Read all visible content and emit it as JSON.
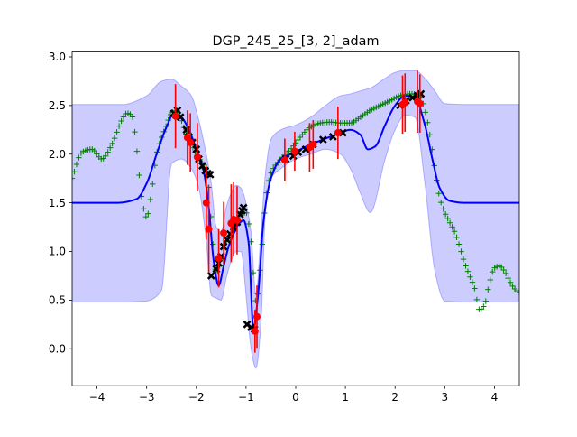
{
  "chart_data": {
    "type": "line",
    "title": "DGP_245_25_[3, 2]_adam",
    "xlabel": "",
    "ylabel": "",
    "xlim": [
      -4.5,
      4.5
    ],
    "ylim": [
      -0.38,
      3.05
    ],
    "x_ticks": [
      -4,
      -3,
      -2,
      -1,
      0,
      1,
      2,
      3,
      4
    ],
    "x_tick_labels": [
      "−4",
      "−3",
      "−2",
      "−1",
      "0",
      "1",
      "2",
      "3",
      "4"
    ],
    "y_ticks": [
      0.0,
      0.5,
      1.0,
      1.5,
      2.0,
      2.5,
      3.0
    ],
    "y_tick_labels": [
      "0.0",
      "0.5",
      "1.0",
      "1.5",
      "2.0",
      "2.5",
      "3.0"
    ],
    "grid": false,
    "legend": "none",
    "colors": {
      "band_fill": "#0000ff",
      "band_opacity": 0.2,
      "mean": "#0000ff",
      "samples": "#008000",
      "data": "#000000",
      "prediction": "#ff0000",
      "errorbar": "#ff0000"
    },
    "series": [
      {
        "kind": "band",
        "x": [
          -4.5,
          -3.5,
          -3.0,
          -2.7,
          -2.5,
          -2.3,
          -2.1,
          -1.95,
          -1.8,
          -1.7,
          -1.6,
          -1.5,
          -1.4,
          -1.3,
          -1.2,
          -1.1,
          -1.0,
          -0.9,
          -0.8,
          -0.7,
          -0.6,
          -0.5,
          -0.3,
          0.0,
          0.3,
          0.6,
          0.9,
          1.1,
          1.3,
          1.5,
          1.8,
          2.0,
          2.2,
          2.4,
          2.6,
          2.8,
          3.0,
          3.5,
          4.5
        ],
        "upper": [
          2.51,
          2.51,
          2.6,
          2.75,
          2.77,
          2.7,
          2.6,
          2.35,
          2.0,
          1.7,
          1.25,
          1.2,
          1.45,
          1.6,
          1.68,
          1.65,
          1.5,
          1.2,
          0.55,
          1.2,
          1.85,
          2.15,
          2.25,
          2.3,
          2.38,
          2.5,
          2.6,
          2.62,
          2.65,
          2.68,
          2.78,
          2.84,
          2.86,
          2.86,
          2.78,
          2.65,
          2.52,
          2.51,
          2.51
        ],
        "lower": [
          0.48,
          0.48,
          0.49,
          0.6,
          1.9,
          1.95,
          1.85,
          1.65,
          1.1,
          0.55,
          0.52,
          0.5,
          0.72,
          0.9,
          1.0,
          1.0,
          0.55,
          0.0,
          -0.2,
          0.25,
          1.5,
          1.75,
          1.85,
          1.95,
          2.0,
          2.05,
          2.0,
          1.85,
          1.6,
          1.4,
          1.95,
          2.25,
          2.4,
          2.38,
          1.7,
          0.8,
          0.49,
          0.48,
          0.48
        ]
      },
      {
        "kind": "mean",
        "x": [
          -4.5,
          -3.6,
          -3.2,
          -3.0,
          -2.8,
          -2.6,
          -2.45,
          -2.3,
          -2.15,
          -2.0,
          -1.85,
          -1.75,
          -1.65,
          -1.55,
          -1.45,
          -1.35,
          -1.25,
          -1.15,
          -1.05,
          -0.95,
          -0.85,
          -0.75,
          -0.65,
          -0.5,
          -0.3,
          -0.1,
          0.1,
          0.3,
          0.5,
          0.7,
          0.9,
          1.1,
          1.3,
          1.45,
          1.6,
          1.8,
          2.0,
          2.2,
          2.4,
          2.6,
          2.75,
          2.9,
          3.1,
          3.4,
          4.5
        ],
        "y": [
          1.5,
          1.5,
          1.54,
          1.7,
          2.0,
          2.28,
          2.42,
          2.38,
          2.25,
          2.05,
          1.82,
          1.45,
          0.9,
          0.65,
          0.85,
          1.05,
          1.18,
          1.28,
          1.32,
          1.1,
          0.2,
          0.6,
          1.3,
          1.75,
          1.95,
          2.0,
          2.05,
          2.1,
          2.14,
          2.18,
          2.22,
          2.25,
          2.2,
          2.05,
          2.08,
          2.3,
          2.5,
          2.6,
          2.58,
          2.3,
          1.95,
          1.65,
          1.52,
          1.5,
          1.5
        ]
      },
      {
        "kind": "samples",
        "x": [
          -4.5,
          -4.3,
          -4.1,
          -3.9,
          -3.7,
          -3.5,
          -3.4,
          -3.3,
          -3.2,
          -3.1,
          -3.0,
          -2.9,
          -2.8,
          -2.6,
          -2.5,
          -2.4,
          -2.3,
          -2.2,
          -2.1,
          -2.0,
          -1.9,
          -1.8,
          -1.7,
          -1.6,
          -1.5,
          -1.4,
          -1.3,
          -1.2,
          -1.1,
          -1.0,
          -0.9,
          -0.8,
          -0.7,
          -0.6,
          -0.5,
          -0.3,
          -0.1,
          0.1,
          0.3,
          0.5,
          0.7,
          0.9,
          1.1,
          1.3,
          1.5,
          1.7,
          1.9,
          2.1,
          2.3,
          2.5,
          2.6,
          2.7,
          2.8,
          2.9,
          3.0,
          3.1,
          3.2,
          3.3,
          3.4,
          3.5,
          3.6,
          3.7,
          3.8,
          3.9,
          4.0,
          4.1,
          4.2,
          4.3,
          4.4,
          4.5
        ],
        "y": [
          1.75,
          2.02,
          2.05,
          1.95,
          2.1,
          2.35,
          2.42,
          2.4,
          2.05,
          1.55,
          1.35,
          1.62,
          2.0,
          2.3,
          2.42,
          2.45,
          2.35,
          2.2,
          2.1,
          2.0,
          1.92,
          1.85,
          1.3,
          0.78,
          0.9,
          1.1,
          1.15,
          1.3,
          1.38,
          1.4,
          1.1,
          0.48,
          0.92,
          1.55,
          1.8,
          1.95,
          2.05,
          2.18,
          2.28,
          2.32,
          2.33,
          2.32,
          2.32,
          2.38,
          2.45,
          2.5,
          2.55,
          2.6,
          2.62,
          2.6,
          2.45,
          2.2,
          1.85,
          1.55,
          1.4,
          1.3,
          1.2,
          1.05,
          0.88,
          0.75,
          0.62,
          0.4,
          0.45,
          0.68,
          0.83,
          0.85,
          0.8,
          0.7,
          0.62,
          0.58
        ]
      },
      {
        "kind": "data",
        "x": [
          -2.45,
          -2.38,
          -2.32,
          -2.2,
          -2.15,
          -2.08,
          -2.0,
          -1.95,
          -1.88,
          -1.82,
          -1.77,
          -1.72,
          -1.7,
          -1.6,
          -1.55,
          -1.5,
          -1.45,
          -1.38,
          -1.32,
          -1.25,
          -1.18,
          -1.12,
          -1.08,
          -1.05,
          -0.98,
          -0.9,
          -0.83,
          -0.2,
          -0.05,
          0.05,
          0.2,
          0.35,
          0.55,
          0.75,
          0.95,
          2.1,
          2.22,
          2.35,
          2.45,
          2.52
        ],
        "y": [
          2.42,
          2.45,
          2.38,
          2.25,
          2.18,
          2.12,
          2.05,
          1.95,
          1.88,
          1.83,
          1.8,
          1.79,
          0.75,
          0.82,
          0.88,
          0.95,
          1.05,
          1.12,
          1.18,
          1.25,
          1.3,
          1.38,
          1.42,
          1.45,
          0.25,
          0.22,
          0.2,
          1.95,
          1.98,
          2.02,
          2.05,
          2.1,
          2.15,
          2.18,
          2.22,
          2.5,
          2.55,
          2.58,
          2.6,
          2.62
        ]
      },
      {
        "kind": "predictions",
        "x": [
          -2.42,
          -2.18,
          -2.12,
          -1.98,
          -1.8,
          -1.75,
          -1.55,
          -1.45,
          -1.3,
          -1.25,
          -1.18,
          -0.82,
          -0.78,
          -0.22,
          -0.02,
          0.28,
          0.35,
          0.85,
          2.15,
          2.2,
          2.45,
          2.5
        ],
        "y": [
          2.39,
          2.17,
          2.12,
          1.97,
          1.5,
          1.23,
          0.93,
          1.19,
          1.29,
          1.33,
          1.32,
          0.18,
          0.33,
          1.94,
          2.03,
          2.07,
          2.1,
          2.22,
          2.51,
          2.53,
          2.54,
          2.52
        ],
        "err": [
          0.33,
          0.28,
          0.3,
          0.35,
          0.38,
          0.45,
          0.3,
          0.32,
          0.4,
          0.38,
          0.35,
          0.22,
          0.32,
          0.22,
          0.2,
          0.25,
          0.25,
          0.27,
          0.3,
          0.3,
          0.32,
          0.3
        ]
      }
    ]
  }
}
